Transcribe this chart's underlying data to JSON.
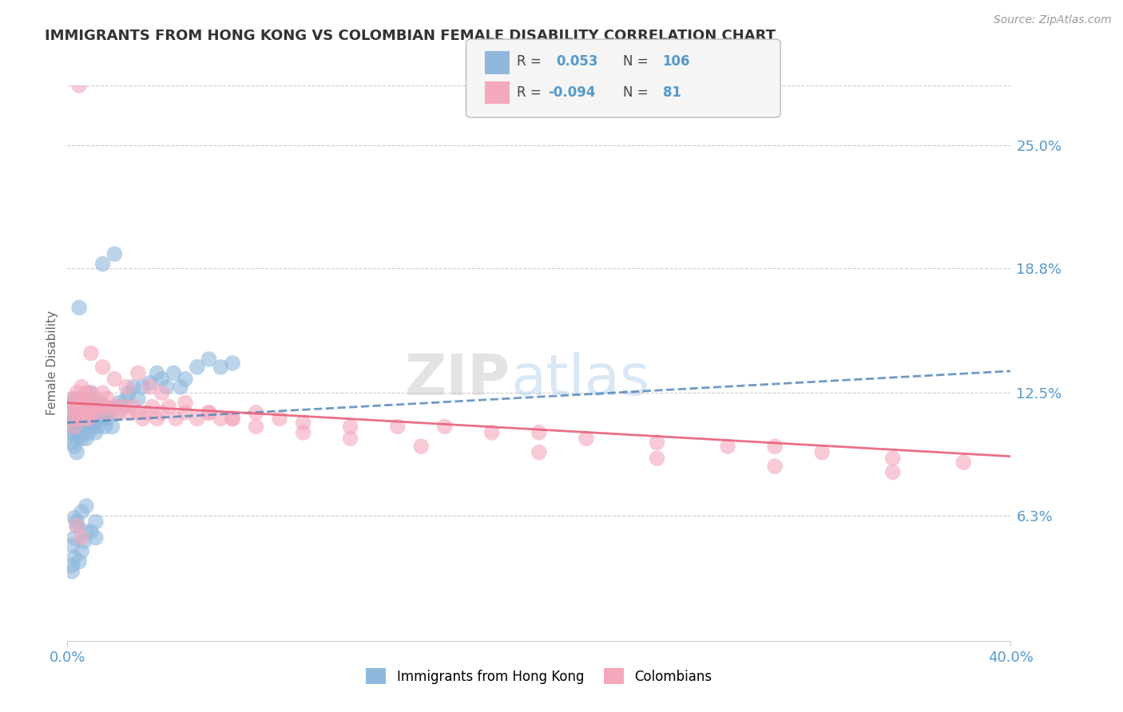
{
  "title": "IMMIGRANTS FROM HONG KONG VS COLOMBIAN FEMALE DISABILITY CORRELATION CHART",
  "source": "Source: ZipAtlas.com",
  "ylabel": "Female Disability",
  "xlim": [
    0.0,
    0.4
  ],
  "ylim": [
    0.0,
    0.28
  ],
  "ytick_labels": [
    "6.3%",
    "12.5%",
    "18.8%",
    "25.0%"
  ],
  "ytick_values": [
    0.063,
    0.125,
    0.188,
    0.25
  ],
  "blue_color": "#90B8DC",
  "pink_color": "#F4A8BC",
  "trend_blue_color": "#5588BB",
  "trend_pink_color": "#E8607A",
  "grid_color": "#CCCCCC",
  "title_color": "#333333",
  "label_color": "#5599CC",
  "watermark_ZIP": "ZIP",
  "watermark_atlas": "atlas",
  "blue_scatter_x": [
    0.001,
    0.001,
    0.001,
    0.002,
    0.002,
    0.002,
    0.002,
    0.003,
    0.003,
    0.003,
    0.003,
    0.003,
    0.004,
    0.004,
    0.004,
    0.004,
    0.004,
    0.004,
    0.005,
    0.005,
    0.005,
    0.005,
    0.005,
    0.005,
    0.006,
    0.006,
    0.006,
    0.006,
    0.006,
    0.007,
    0.007,
    0.007,
    0.007,
    0.007,
    0.007,
    0.008,
    0.008,
    0.008,
    0.008,
    0.008,
    0.009,
    0.009,
    0.009,
    0.009,
    0.01,
    0.01,
    0.01,
    0.01,
    0.01,
    0.011,
    0.011,
    0.011,
    0.012,
    0.012,
    0.012,
    0.013,
    0.013,
    0.014,
    0.014,
    0.015,
    0.015,
    0.016,
    0.016,
    0.017,
    0.018,
    0.019,
    0.02,
    0.021,
    0.022,
    0.024,
    0.025,
    0.026,
    0.028,
    0.03,
    0.032,
    0.035,
    0.038,
    0.04,
    0.042,
    0.045,
    0.048,
    0.05,
    0.055,
    0.06,
    0.065,
    0.07,
    0.015,
    0.02,
    0.003,
    0.004,
    0.002,
    0.003,
    0.003,
    0.005,
    0.006,
    0.007,
    0.008,
    0.005,
    0.01,
    0.012,
    0.002,
    0.002,
    0.004,
    0.006,
    0.008,
    0.012
  ],
  "blue_scatter_y": [
    0.11,
    0.118,
    0.105,
    0.115,
    0.108,
    0.12,
    0.1,
    0.112,
    0.118,
    0.105,
    0.122,
    0.098,
    0.11,
    0.115,
    0.108,
    0.102,
    0.12,
    0.095,
    0.112,
    0.118,
    0.108,
    0.115,
    0.105,
    0.122,
    0.115,
    0.108,
    0.12,
    0.102,
    0.112,
    0.118,
    0.108,
    0.115,
    0.105,
    0.112,
    0.122,
    0.115,
    0.108,
    0.12,
    0.102,
    0.112,
    0.115,
    0.108,
    0.12,
    0.105,
    0.112,
    0.118,
    0.108,
    0.115,
    0.125,
    0.112,
    0.108,
    0.118,
    0.115,
    0.105,
    0.12,
    0.112,
    0.108,
    0.115,
    0.12,
    0.112,
    0.118,
    0.115,
    0.108,
    0.112,
    0.115,
    0.108,
    0.118,
    0.115,
    0.12,
    0.118,
    0.122,
    0.125,
    0.128,
    0.122,
    0.128,
    0.13,
    0.135,
    0.132,
    0.128,
    0.135,
    0.128,
    0.132,
    0.138,
    0.142,
    0.138,
    0.14,
    0.19,
    0.195,
    0.062,
    0.058,
    0.048,
    0.042,
    0.052,
    0.04,
    0.045,
    0.05,
    0.055,
    0.168,
    0.055,
    0.052,
    0.038,
    0.035,
    0.06,
    0.065,
    0.068,
    0.06
  ],
  "pink_scatter_x": [
    0.001,
    0.002,
    0.002,
    0.003,
    0.003,
    0.004,
    0.004,
    0.005,
    0.005,
    0.006,
    0.006,
    0.007,
    0.007,
    0.008,
    0.008,
    0.009,
    0.009,
    0.01,
    0.01,
    0.011,
    0.012,
    0.013,
    0.014,
    0.015,
    0.016,
    0.017,
    0.018,
    0.02,
    0.022,
    0.024,
    0.026,
    0.028,
    0.03,
    0.032,
    0.034,
    0.036,
    0.038,
    0.04,
    0.043,
    0.046,
    0.05,
    0.055,
    0.06,
    0.065,
    0.07,
    0.08,
    0.09,
    0.1,
    0.12,
    0.14,
    0.16,
    0.18,
    0.2,
    0.22,
    0.25,
    0.28,
    0.3,
    0.32,
    0.35,
    0.38,
    0.005,
    0.01,
    0.015,
    0.02,
    0.025,
    0.03,
    0.035,
    0.04,
    0.05,
    0.06,
    0.07,
    0.08,
    0.1,
    0.12,
    0.15,
    0.2,
    0.25,
    0.3,
    0.35,
    0.004,
    0.006
  ],
  "pink_scatter_y": [
    0.118,
    0.112,
    0.122,
    0.118,
    0.108,
    0.115,
    0.125,
    0.112,
    0.122,
    0.118,
    0.128,
    0.112,
    0.122,
    0.115,
    0.125,
    0.112,
    0.118,
    0.115,
    0.125,
    0.118,
    0.122,
    0.115,
    0.118,
    0.125,
    0.118,
    0.122,
    0.115,
    0.118,
    0.115,
    0.118,
    0.115,
    0.118,
    0.115,
    0.112,
    0.115,
    0.118,
    0.112,
    0.115,
    0.118,
    0.112,
    0.115,
    0.112,
    0.115,
    0.112,
    0.112,
    0.115,
    0.112,
    0.11,
    0.108,
    0.108,
    0.108,
    0.105,
    0.105,
    0.102,
    0.1,
    0.098,
    0.098,
    0.095,
    0.092,
    0.09,
    0.28,
    0.145,
    0.138,
    0.132,
    0.128,
    0.135,
    0.128,
    0.125,
    0.12,
    0.115,
    0.112,
    0.108,
    0.105,
    0.102,
    0.098,
    0.095,
    0.092,
    0.088,
    0.085,
    0.058,
    0.052
  ],
  "blue_trend_x": [
    0.0,
    0.4
  ],
  "blue_trend_y": [
    0.11,
    0.136
  ],
  "pink_trend_x": [
    0.0,
    0.4
  ],
  "pink_trend_y": [
    0.12,
    0.093
  ]
}
